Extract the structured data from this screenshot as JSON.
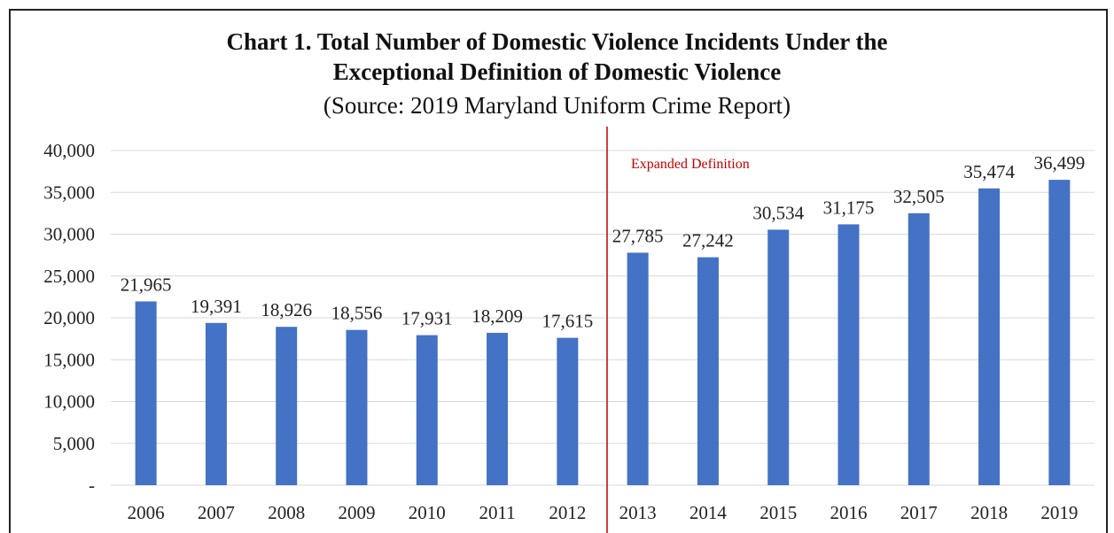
{
  "chart_data": {
    "type": "bar",
    "title_line1": "Chart 1. Total Number of Domestic Violence Incidents Under the",
    "title_line2": "Exceptional Definition of Domestic Violence",
    "subtitle": "(Source: 2019 Maryland Uniform Crime Report)",
    "categories": [
      "2006",
      "2007",
      "2008",
      "2009",
      "2010",
      "2011",
      "2012",
      "2013",
      "2014",
      "2015",
      "2016",
      "2017",
      "2018",
      "2019"
    ],
    "values": [
      21965,
      19391,
      18926,
      18556,
      17931,
      18209,
      17615,
      27785,
      27242,
      30534,
      31175,
      32505,
      35474,
      36499
    ],
    "data_labels": [
      "21,965",
      "19,391",
      "18,926",
      "18,556",
      "17,931",
      "18,209",
      "17,615",
      "27,785",
      "27,242",
      "30,534",
      "31,175",
      "32,505",
      "35,474",
      "36,499"
    ],
    "y_ticks": [
      0,
      5000,
      10000,
      15000,
      20000,
      25000,
      30000,
      35000,
      40000
    ],
    "y_tick_labels": [
      "-",
      "5,000",
      "10,000",
      "15,000",
      "20,000",
      "25,000",
      "30,000",
      "35,000",
      "40,000"
    ],
    "ylim": [
      0,
      40000
    ],
    "bar_color": "#4472c4",
    "grid": true,
    "grid_color": "#d9d9d9",
    "annotation": {
      "text": "Expanded Definition",
      "divider_after_category": "2012",
      "color": "#c00000"
    }
  }
}
